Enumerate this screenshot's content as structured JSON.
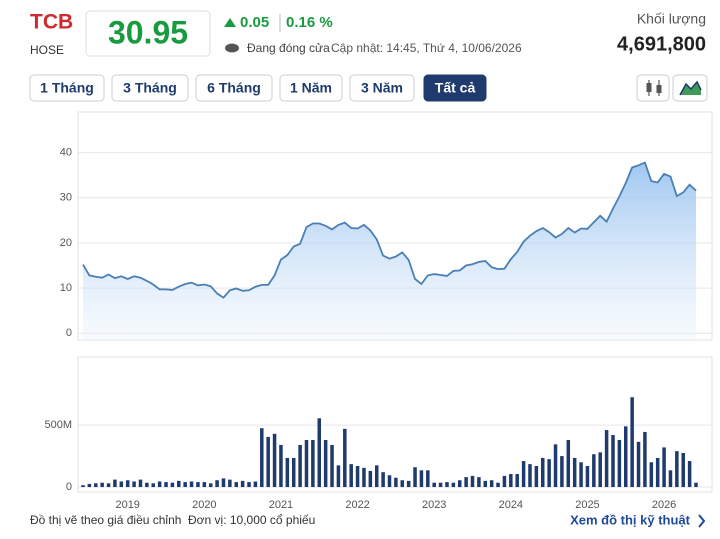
{
  "header": {
    "ticker": "TCB",
    "exchange": "HOSE",
    "price": "30.95",
    "change": "0.05",
    "change_pct": "0.16 %",
    "status": "Đang đóng cửa",
    "updated": "Cập nhật: 14:45, Thứ 4, 10/06/2026",
    "volume_label": "Khối lượng",
    "volume": "4,691,800"
  },
  "ranges": [
    "1 Tháng",
    "3 Tháng",
    "6 Tháng",
    "1 Năm",
    "3 Năm",
    "Tất cả"
  ],
  "active_range": 5,
  "chart_data": [
    {
      "type": "area",
      "color": "#4a7fb5",
      "values": [
        15.2,
        12.8,
        12.5,
        12.3,
        13.0,
        12.2,
        12.6,
        12.0,
        12.6,
        12.3,
        11.6,
        10.8,
        9.7,
        9.7,
        9.6,
        10.3,
        10.9,
        11.2,
        10.6,
        10.8,
        10.4,
        8.8,
        7.9,
        9.5,
        9.9,
        9.4,
        9.5,
        10.3,
        10.7,
        10.7,
        12.8,
        16.3,
        17.3,
        19.2,
        19.8,
        23.5,
        24.3,
        24.3,
        23.8,
        23.0,
        24.0,
        24.5,
        23.3,
        23.2,
        24.0,
        22.8,
        20.8,
        17.2,
        16.5,
        17.0,
        17.9,
        16.2,
        12.0,
        10.9,
        12.8,
        13.1,
        12.9,
        12.7,
        13.8,
        13.9,
        15.0,
        15.3,
        15.8,
        16.0,
        14.6,
        14.2,
        14.3,
        16.4,
        18.0,
        20.3,
        21.6,
        22.6,
        23.3,
        22.4,
        21.2,
        22.0,
        23.3,
        22.3,
        23.2,
        23.1,
        24.6,
        26.0,
        24.7,
        27.6,
        30.3,
        33.3,
        36.7,
        37.2,
        37.8,
        33.7,
        33.4,
        35.3,
        34.7,
        30.4,
        31.2,
        32.9,
        31.6
      ],
      "ylim": [
        -1.5,
        49
      ],
      "yticks": [
        0,
        10,
        20,
        30,
        40
      ],
      "grid": true
    },
    {
      "type": "bar",
      "color": "#1f3b6e",
      "categories": [
        null,
        null,
        null,
        null,
        null,
        null,
        null,
        "2019",
        null,
        null,
        null,
        null,
        null,
        null,
        null,
        null,
        null,
        null,
        null,
        "2020",
        null,
        null,
        null,
        null,
        null,
        null,
        null,
        null,
        null,
        null,
        null,
        "2021",
        null,
        null,
        null,
        null,
        null,
        null,
        null,
        null,
        null,
        null,
        null,
        "2022",
        null,
        null,
        null,
        null,
        null,
        null,
        null,
        null,
        null,
        null,
        null,
        "2023",
        null,
        null,
        null,
        null,
        null,
        null,
        null,
        null,
        null,
        null,
        null,
        "2024",
        null,
        null,
        null,
        null,
        null,
        null,
        null,
        null,
        null,
        null,
        null,
        "2025",
        null,
        null,
        null,
        null,
        null,
        null,
        null,
        null,
        null,
        null,
        null,
        "2026",
        null,
        null,
        null,
        null,
        null
      ],
      "values": [
        15000000,
        25000000,
        30000000,
        35000000,
        30000000,
        60000000,
        45000000,
        55000000,
        45000000,
        60000000,
        35000000,
        30000000,
        45000000,
        40000000,
        35000000,
        50000000,
        40000000,
        45000000,
        40000000,
        40000000,
        30000000,
        55000000,
        70000000,
        60000000,
        40000000,
        50000000,
        40000000,
        45000000,
        475000000,
        405000000,
        430000000,
        340000000,
        235000000,
        235000000,
        340000000,
        380000000,
        380000000,
        555000000,
        380000000,
        340000000,
        175000000,
        470000000,
        185000000,
        170000000,
        155000000,
        130000000,
        175000000,
        120000000,
        95000000,
        75000000,
        55000000,
        50000000,
        160000000,
        135000000,
        135000000,
        35000000,
        35000000,
        40000000,
        35000000,
        55000000,
        80000000,
        90000000,
        80000000,
        50000000,
        55000000,
        35000000,
        90000000,
        105000000,
        105000000,
        210000000,
        185000000,
        170000000,
        235000000,
        225000000,
        345000000,
        250000000,
        380000000,
        235000000,
        200000000,
        170000000,
        265000000,
        280000000,
        460000000,
        420000000,
        380000000,
        490000000,
        725000000,
        365000000,
        445000000,
        200000000,
        235000000,
        320000000,
        135000000,
        290000000,
        275000000,
        210000000,
        35000000
      ],
      "ylim": [
        -40000000,
        1050000000
      ],
      "yticks": [
        0,
        {
          "value": 500000000,
          "label": "500M"
        }
      ],
      "grid": true
    }
  ],
  "footer": {
    "note": "Đồ thị vẽ theo giá điều chỉnh",
    "unit": "Đơn vị: 10,000 cổ phiếu",
    "link": "Xem đồ thị kỹ thuật"
  }
}
